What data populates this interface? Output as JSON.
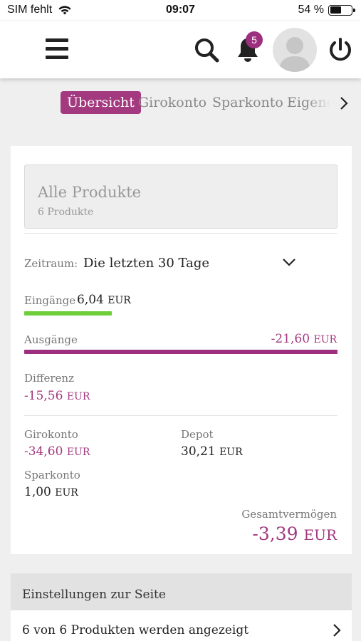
{
  "status_bar": {
    "carrier": "SIM fehlt",
    "time": "09:07",
    "battery_percent": "54 %",
    "battery_level": 0.54
  },
  "header": {
    "menu_icon": "hamburger-icon",
    "search_icon": "search-icon",
    "bell_icon": "bell-icon",
    "notification_count": "5",
    "avatar_icon": "user-avatar-icon",
    "power_icon": "power-icon"
  },
  "tabs": [
    {
      "label": "Übersicht",
      "active": true
    },
    {
      "label": "Girokonto",
      "active": false
    },
    {
      "label": "Sparkonto",
      "active": false
    },
    {
      "label": "Eigene",
      "active": false
    }
  ],
  "overview": {
    "products_title": "Alle Produkte",
    "products_count": "6 Produkte",
    "zeitraum_label": "Zeitraum:",
    "zeitraum_value": "Die letzten 30 Tage",
    "eingaenge": {
      "label": "Eingänge",
      "amount": "6,04",
      "currency": "EUR",
      "bar_fraction": 0.28
    },
    "ausgaenge": {
      "label": "Ausgänge",
      "amount": "-21,60",
      "currency": "EUR",
      "bar_fraction": 1.0
    },
    "differenz": {
      "label": "Differenz",
      "amount": "-15,56",
      "currency": "EUR"
    },
    "accounts": {
      "girokonto": {
        "label": "Girokonto",
        "amount": "-34,60",
        "currency": "EUR"
      },
      "depot": {
        "label": "Depot",
        "amount": "30,21",
        "currency": "EUR"
      },
      "sparkonto": {
        "label": "Sparkonto",
        "amount": "1,00",
        "currency": "EUR"
      }
    },
    "gesamt": {
      "label": "Gesamtvermögen",
      "amount": "-3,39",
      "currency": "EUR"
    }
  },
  "settings": {
    "title": "Einstellungen zur Seite",
    "row_label": "6 von 6 Produkten werden angezeigt"
  },
  "colors": {
    "accent": "#a3397f",
    "income_bar": "#6fcf3a",
    "expense_bar": "#9c2f7e"
  }
}
